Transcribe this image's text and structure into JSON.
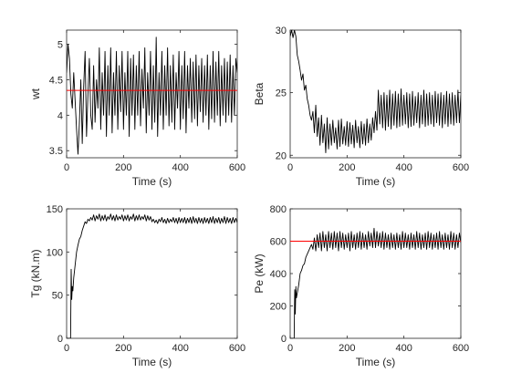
{
  "chart_data": [
    {
      "type": "line",
      "xlabel": "Time (s)",
      "ylabel": "wt",
      "xlim": [
        0,
        600
      ],
      "ylim": [
        3.4,
        5.2
      ],
      "xticks": [
        0,
        200,
        400,
        600
      ],
      "yticks": [
        3.5,
        4,
        4.5,
        5
      ],
      "ytick_labels": [
        "3.5",
        "4",
        "4.5",
        "5"
      ],
      "reference_line": {
        "y": 4.35,
        "color": "#ff0000"
      },
      "series": [
        {
          "color": "#000000",
          "x": [
            0,
            5,
            10,
            15,
            20,
            25,
            30,
            35,
            40,
            45,
            50,
            55,
            60,
            65,
            70,
            75,
            80,
            85,
            90,
            95,
            100,
            105,
            110,
            115,
            120,
            125,
            130,
            135,
            140,
            145,
            150,
            155,
            160,
            165,
            170,
            175,
            180,
            185,
            190,
            195,
            200,
            205,
            210,
            215,
            220,
            225,
            230,
            235,
            240,
            245,
            250,
            255,
            260,
            265,
            270,
            275,
            280,
            285,
            290,
            295,
            300,
            305,
            310,
            315,
            320,
            325,
            330,
            335,
            340,
            345,
            350,
            355,
            360,
            365,
            370,
            375,
            380,
            385,
            390,
            395,
            400,
            405,
            410,
            415,
            420,
            425,
            430,
            435,
            440,
            445,
            450,
            455,
            460,
            465,
            470,
            475,
            480,
            485,
            490,
            495,
            500,
            505,
            510,
            515,
            520,
            525,
            530,
            535,
            540,
            545,
            550,
            555,
            560,
            565,
            570,
            575,
            580,
            585,
            590,
            595,
            600
          ],
          "y": [
            4.6,
            5.0,
            4.8,
            4.3,
            4.1,
            4.6,
            4.2,
            3.8,
            3.45,
            3.9,
            4.5,
            3.6,
            4.4,
            4.9,
            3.7,
            4.3,
            4.8,
            4.0,
            3.8,
            4.7,
            3.9,
            4.5,
            4.1,
            4.95,
            3.8,
            4.6,
            4.0,
            4.9,
            3.7,
            4.7,
            4.0,
            4.95,
            3.75,
            4.6,
            4.0,
            4.9,
            3.8,
            4.7,
            4.05,
            4.9,
            3.8,
            4.6,
            4.0,
            4.9,
            3.7,
            4.8,
            4.0,
            4.85,
            3.8,
            4.7,
            4.0,
            4.9,
            3.85,
            4.65,
            4.1,
            4.95,
            3.75,
            4.6,
            4.0,
            4.9,
            3.8,
            4.7,
            3.9,
            5.1,
            3.7,
            4.6,
            4.0,
            4.9,
            3.8,
            4.7,
            4.0,
            4.95,
            3.85,
            4.7,
            3.9,
            4.85,
            3.8,
            4.6,
            4.1,
            4.9,
            3.8,
            4.7,
            3.95,
            4.9,
            3.75,
            4.7,
            4.1,
            4.8,
            3.9,
            4.75,
            3.95,
            4.85,
            3.85,
            4.7,
            4.05,
            4.8,
            3.9,
            4.7,
            4.0,
            4.85,
            3.8,
            4.7,
            3.95,
            4.9,
            3.9,
            4.75,
            4.0,
            4.9,
            3.85,
            4.7,
            4.0,
            4.8,
            3.9,
            4.75,
            4.0,
            4.85,
            3.9,
            4.7,
            4.0,
            4.8,
            4.6
          ]
        }
      ]
    },
    {
      "type": "line",
      "xlabel": "Time (s)",
      "ylabel": "Beta",
      "xlim": [
        0,
        600
      ],
      "ylim": [
        19.8,
        30
      ],
      "xticks": [
        0,
        200,
        400,
        600
      ],
      "yticks": [
        20,
        25,
        30
      ],
      "ytick_labels": [
        "20",
        "25",
        "30"
      ],
      "series": [
        {
          "color": "#000000",
          "x": [
            0,
            5,
            10,
            15,
            20,
            25,
            30,
            35,
            40,
            45,
            50,
            55,
            60,
            65,
            70,
            75,
            80,
            85,
            90,
            95,
            100,
            105,
            110,
            115,
            120,
            125,
            130,
            135,
            140,
            145,
            150,
            155,
            160,
            165,
            170,
            175,
            180,
            185,
            190,
            195,
            200,
            205,
            210,
            215,
            220,
            225,
            230,
            235,
            240,
            245,
            250,
            255,
            260,
            265,
            270,
            275,
            280,
            285,
            290,
            295,
            300,
            305,
            310,
            315,
            320,
            325,
            330,
            335,
            340,
            345,
            350,
            355,
            360,
            365,
            370,
            375,
            380,
            385,
            390,
            395,
            400,
            405,
            410,
            415,
            420,
            425,
            430,
            435,
            440,
            445,
            450,
            455,
            460,
            465,
            470,
            475,
            480,
            485,
            490,
            495,
            500,
            505,
            510,
            515,
            520,
            525,
            530,
            535,
            540,
            545,
            550,
            555,
            560,
            565,
            570,
            575,
            580,
            585,
            590,
            595,
            600
          ],
          "y": [
            29.5,
            30.0,
            29.4,
            30.0,
            29.5,
            28.0,
            27.5,
            26.8,
            26.0,
            26.5,
            25.2,
            25.6,
            24.5,
            24.0,
            23.2,
            22.8,
            23.5,
            21.8,
            24.0,
            21.5,
            23.0,
            20.8,
            23.2,
            21.0,
            22.5,
            20.2,
            23.0,
            20.5,
            22.5,
            20.8,
            22.8,
            21.0,
            22.2,
            20.5,
            22.8,
            20.7,
            22.9,
            20.9,
            22.3,
            20.8,
            22.7,
            20.7,
            22.6,
            20.9,
            22.4,
            20.6,
            22.8,
            21.0,
            22.3,
            20.6,
            22.7,
            20.9,
            22.5,
            20.8,
            22.9,
            21.0,
            22.5,
            21.2,
            23.0,
            21.8,
            23.5,
            22.0,
            25.2,
            22.5,
            24.8,
            22.2,
            25.0,
            22.0,
            24.8,
            22.3,
            25.2,
            22.1,
            24.9,
            22.4,
            25.1,
            22.2,
            24.9,
            22.3,
            25.3,
            22.4,
            24.8,
            22.5,
            25.0,
            22.2,
            24.9,
            22.3,
            25.1,
            22.4,
            24.7,
            22.6,
            25.0,
            22.2,
            24.8,
            22.5,
            25.2,
            22.3,
            24.9,
            22.4,
            25.0,
            22.5,
            24.8,
            22.3,
            25.1,
            22.6,
            24.9,
            22.4,
            25.0,
            22.2,
            24.8,
            22.5,
            25.1,
            22.3,
            24.9,
            22.5,
            25.0,
            22.4,
            24.8,
            22.6,
            25.2,
            22.6,
            24.8
          ]
        }
      ]
    },
    {
      "type": "line",
      "xlabel": "Time (s)",
      "ylabel": "Tg (kN.m)",
      "xlim": [
        0,
        600
      ],
      "ylim": [
        0,
        150
      ],
      "xticks": [
        0,
        200,
        400,
        600
      ],
      "yticks": [
        0,
        50,
        100,
        150
      ],
      "ytick_labels": [
        "0",
        "50",
        "100",
        "150"
      ],
      "series": [
        {
          "color": "#000000",
          "x": [
            0,
            5,
            10,
            12,
            14,
            16,
            18,
            20,
            22,
            25,
            30,
            35,
            40,
            45,
            50,
            55,
            60,
            65,
            70,
            75,
            80,
            85,
            90,
            95,
            100,
            105,
            110,
            115,
            120,
            125,
            130,
            135,
            140,
            145,
            150,
            155,
            160,
            165,
            170,
            175,
            180,
            185,
            190,
            195,
            200,
            205,
            210,
            215,
            220,
            225,
            230,
            235,
            240,
            245,
            250,
            255,
            260,
            265,
            270,
            275,
            280,
            285,
            290,
            295,
            300,
            305,
            310,
            315,
            320,
            325,
            330,
            335,
            340,
            345,
            350,
            355,
            360,
            365,
            370,
            375,
            380,
            385,
            390,
            395,
            400,
            405,
            410,
            415,
            420,
            425,
            430,
            435,
            440,
            445,
            450,
            455,
            460,
            465,
            470,
            475,
            480,
            485,
            490,
            495,
            500,
            505,
            510,
            515,
            520,
            525,
            530,
            535,
            540,
            545,
            550,
            555,
            560,
            565,
            570,
            575,
            580,
            585,
            590,
            595,
            600
          ],
          "y": [
            0,
            0,
            0,
            0,
            0,
            80,
            45,
            60,
            55,
            70,
            85,
            100,
            108,
            115,
            118,
            125,
            130,
            135,
            133,
            138,
            136,
            140,
            137,
            143,
            136,
            142,
            138,
            144,
            136,
            142,
            137,
            143,
            136,
            141,
            138,
            144,
            137,
            142,
            136,
            143,
            137,
            141,
            138,
            143,
            136,
            142,
            137,
            143,
            136,
            141,
            138,
            144,
            136,
            142,
            137,
            143,
            137,
            141,
            138,
            143,
            136,
            142,
            137,
            141,
            135,
            138,
            134,
            137,
            133,
            138,
            135,
            140,
            134,
            138,
            133,
            139,
            134,
            138,
            135,
            140,
            134,
            139,
            133,
            140,
            134,
            139,
            134,
            140,
            133,
            139,
            134,
            140,
            133,
            141,
            134,
            139,
            133,
            140,
            134,
            139,
            133,
            140,
            134,
            139,
            133,
            140,
            134,
            141,
            133,
            139,
            134,
            140,
            133,
            139,
            134,
            141,
            133,
            140,
            134,
            139,
            133,
            140,
            134,
            139,
            134
          ]
        }
      ]
    },
    {
      "type": "line",
      "xlabel": "Time (s)",
      "ylabel": "Pe (kW)",
      "xlim": [
        0,
        600
      ],
      "ylim": [
        0,
        800
      ],
      "xticks": [
        0,
        200,
        400,
        600
      ],
      "yticks": [
        0,
        200,
        400,
        600,
        800
      ],
      "ytick_labels": [
        "0",
        "200",
        "400",
        "600",
        "800"
      ],
      "reference_line": {
        "y": 600,
        "color": "#ff0000"
      },
      "series": [
        {
          "color": "#000000",
          "x": [
            0,
            5,
            10,
            14,
            16,
            18,
            20,
            22,
            25,
            30,
            35,
            40,
            45,
            50,
            55,
            60,
            65,
            70,
            75,
            80,
            85,
            90,
            95,
            100,
            105,
            110,
            115,
            120,
            125,
            130,
            135,
            140,
            145,
            150,
            155,
            160,
            165,
            170,
            175,
            180,
            185,
            190,
            195,
            200,
            205,
            210,
            215,
            220,
            225,
            230,
            235,
            240,
            245,
            250,
            255,
            260,
            265,
            270,
            275,
            280,
            285,
            290,
            295,
            300,
            305,
            310,
            315,
            320,
            325,
            330,
            335,
            340,
            345,
            350,
            355,
            360,
            365,
            370,
            375,
            380,
            385,
            390,
            395,
            400,
            405,
            410,
            415,
            420,
            425,
            430,
            435,
            440,
            445,
            450,
            455,
            460,
            465,
            470,
            475,
            480,
            485,
            490,
            495,
            500,
            505,
            510,
            515,
            520,
            525,
            530,
            535,
            540,
            545,
            550,
            555,
            560,
            565,
            570,
            575,
            580,
            585,
            590,
            595,
            600
          ],
          "y": [
            0,
            0,
            0,
            0,
            300,
            150,
            320,
            250,
            280,
            330,
            400,
            420,
            450,
            460,
            500,
            520,
            540,
            560,
            580,
            550,
            620,
            540,
            640,
            560,
            650,
            540,
            660,
            560,
            640,
            540,
            660,
            560,
            650,
            550,
            660,
            560,
            650,
            540,
            660,
            560,
            650,
            550,
            640,
            560,
            650,
            540,
            660,
            560,
            640,
            550,
            650,
            560,
            660,
            550,
            650,
            560,
            640,
            550,
            660,
            570,
            650,
            560,
            680,
            560,
            660,
            570,
            650,
            560,
            660,
            550,
            650,
            560,
            640,
            550,
            650,
            560,
            640,
            550,
            650,
            560,
            640,
            550,
            660,
            560,
            650,
            560,
            640,
            550,
            650,
            560,
            640,
            550,
            660,
            560,
            650,
            550,
            640,
            560,
            650,
            550,
            660,
            560,
            650,
            550,
            640,
            560,
            650,
            550,
            660,
            560,
            640,
            550,
            650,
            560,
            640,
            550,
            660,
            560,
            650,
            550,
            640,
            560,
            650,
            590
          ]
        }
      ]
    }
  ]
}
